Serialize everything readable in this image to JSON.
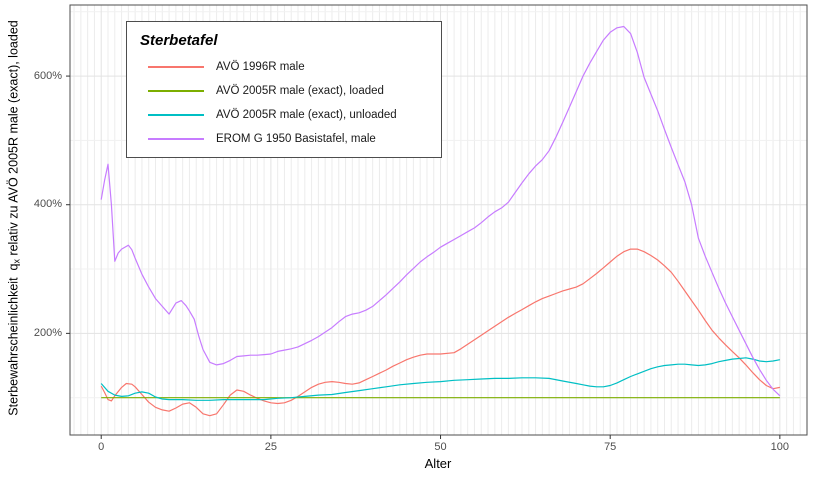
{
  "legend": {
    "title": "Sterbetafel"
  },
  "axes": {
    "x": {
      "title": "Alter",
      "ticks": [
        {
          "value": 0,
          "label": "0"
        },
        {
          "value": 25,
          "label": "25"
        },
        {
          "value": 50,
          "label": "50"
        },
        {
          "value": 75,
          "label": "75"
        },
        {
          "value": 100,
          "label": "100"
        }
      ]
    },
    "y": {
      "title_pre": "Sterbewahrscheinlichkeit  q",
      "title_sub": "x",
      "title_post": " relativ zu AVÖ 2005R male (exact), loaded",
      "ticks": [
        {
          "value": 600,
          "label": "600%"
        },
        {
          "value": 400,
          "label": "400%"
        },
        {
          "value": 200,
          "label": "200%"
        }
      ]
    }
  },
  "chart_data": {
    "type": "line",
    "title": "Sterbetafel",
    "xlabel": "Alter",
    "ylabel": "Sterbewahrscheinlichkeit qx relativ zu AVÖ 2005R male (exact), loaded",
    "x_domain": [
      -4.6,
      104
    ],
    "y_domain": [
      42,
      710.5
    ],
    "x_major": [
      0,
      25,
      50,
      75,
      100
    ],
    "x_minor_step": 1,
    "y_major": [
      200,
      400,
      600
    ],
    "y_minor": [
      100,
      300,
      500,
      700
    ],
    "grid": true,
    "legend_position": "top-left-inside",
    "unit": "percent",
    "colors": {
      "grid_major": "#e3e3e3",
      "grid_minor_v": "#ececec",
      "grid_minor_h": "#f1f1f1",
      "panel_border": "#4d4d4d",
      "tick_mark": "#333333"
    },
    "series": [
      {
        "name": "AVÖ 1996R male",
        "color": "#F8766D",
        "points": [
          [
            0,
            118
          ],
          [
            0.5,
            108
          ],
          [
            1,
            97
          ],
          [
            1.5,
            95
          ],
          [
            2,
            103
          ],
          [
            3,
            116
          ],
          [
            3.7,
            122
          ],
          [
            4.5,
            121
          ],
          [
            5,
            117
          ],
          [
            6,
            105
          ],
          [
            7,
            93
          ],
          [
            8,
            85
          ],
          [
            9,
            81
          ],
          [
            10,
            79
          ],
          [
            11,
            84
          ],
          [
            12,
            90
          ],
          [
            13,
            92
          ],
          [
            14,
            85
          ],
          [
            15,
            75
          ],
          [
            16,
            72
          ],
          [
            17,
            75
          ],
          [
            18,
            89
          ],
          [
            19,
            104
          ],
          [
            20,
            112
          ],
          [
            21,
            110
          ],
          [
            22,
            104
          ],
          [
            23,
            99
          ],
          [
            24,
            95
          ],
          [
            25,
            92
          ],
          [
            26,
            91
          ],
          [
            27,
            92
          ],
          [
            28,
            96
          ],
          [
            29,
            102
          ],
          [
            30,
            109
          ],
          [
            31,
            116
          ],
          [
            32,
            121
          ],
          [
            33,
            124
          ],
          [
            34,
            125
          ],
          [
            35,
            124
          ],
          [
            36,
            122
          ],
          [
            37,
            121
          ],
          [
            38,
            123
          ],
          [
            39,
            128
          ],
          [
            40,
            133
          ],
          [
            41,
            138
          ],
          [
            42,
            143
          ],
          [
            43,
            149
          ],
          [
            44,
            154
          ],
          [
            45,
            159
          ],
          [
            46,
            163
          ],
          [
            47,
            166
          ],
          [
            48,
            168
          ],
          [
            50,
            168
          ],
          [
            52,
            170
          ],
          [
            53,
            176
          ],
          [
            54,
            183
          ],
          [
            55,
            190
          ],
          [
            56,
            197
          ],
          [
            57,
            204
          ],
          [
            58,
            211
          ],
          [
            59,
            218
          ],
          [
            60,
            225
          ],
          [
            61,
            231
          ],
          [
            62,
            237
          ],
          [
            63,
            243
          ],
          [
            64,
            249
          ],
          [
            65,
            254
          ],
          [
            66,
            258
          ],
          [
            67,
            262
          ],
          [
            68,
            266
          ],
          [
            69,
            269
          ],
          [
            70,
            272
          ],
          [
            71,
            277
          ],
          [
            72,
            285
          ],
          [
            73,
            293
          ],
          [
            74,
            302
          ],
          [
            75,
            311
          ],
          [
            76,
            320
          ],
          [
            77,
            327
          ],
          [
            78,
            331
          ],
          [
            79,
            331
          ],
          [
            80,
            327
          ],
          [
            81,
            321
          ],
          [
            82,
            314
          ],
          [
            83,
            305
          ],
          [
            84,
            295
          ],
          [
            85,
            281
          ],
          [
            86,
            266
          ],
          [
            87,
            251
          ],
          [
            88,
            236
          ],
          [
            89,
            220
          ],
          [
            90,
            205
          ],
          [
            91,
            193
          ],
          [
            92,
            182
          ],
          [
            93,
            172
          ],
          [
            94,
            162
          ],
          [
            95,
            151
          ],
          [
            96,
            139
          ],
          [
            97,
            128
          ],
          [
            98,
            119
          ],
          [
            99,
            114
          ],
          [
            100,
            116
          ]
        ]
      },
      {
        "name": "AVÖ 2005R male (exact), loaded",
        "color": "#7CAE00",
        "points": [
          [
            0,
            100
          ],
          [
            100,
            100
          ]
        ]
      },
      {
        "name": "AVÖ 2005R male (exact), unloaded",
        "color": "#00BFC4",
        "points": [
          [
            0,
            122
          ],
          [
            1,
            110
          ],
          [
            2,
            104
          ],
          [
            3,
            102
          ],
          [
            4,
            103
          ],
          [
            5,
            107
          ],
          [
            6,
            109
          ],
          [
            7,
            107
          ],
          [
            8,
            101
          ],
          [
            9,
            98
          ],
          [
            10,
            97
          ],
          [
            12,
            97
          ],
          [
            14,
            96
          ],
          [
            16,
            96
          ],
          [
            18,
            97
          ],
          [
            20,
            97
          ],
          [
            22,
            97
          ],
          [
            24,
            97
          ],
          [
            26,
            99
          ],
          [
            28,
            100
          ],
          [
            30,
            102
          ],
          [
            32,
            104
          ],
          [
            34,
            105
          ],
          [
            36,
            108
          ],
          [
            38,
            111
          ],
          [
            40,
            114
          ],
          [
            42,
            117
          ],
          [
            44,
            120
          ],
          [
            46,
            122
          ],
          [
            48,
            124
          ],
          [
            50,
            125
          ],
          [
            52,
            127
          ],
          [
            54,
            128
          ],
          [
            56,
            129
          ],
          [
            58,
            130
          ],
          [
            60,
            130
          ],
          [
            62,
            131
          ],
          [
            64,
            131
          ],
          [
            66,
            130
          ],
          [
            68,
            126
          ],
          [
            70,
            122
          ],
          [
            71,
            120
          ],
          [
            72,
            118
          ],
          [
            73,
            117
          ],
          [
            74,
            117
          ],
          [
            75,
            119
          ],
          [
            76,
            123
          ],
          [
            77,
            128
          ],
          [
            78,
            133
          ],
          [
            79,
            137
          ],
          [
            80,
            141
          ],
          [
            81,
            145
          ],
          [
            82,
            148
          ],
          [
            83,
            150
          ],
          [
            84,
            151
          ],
          [
            85,
            152
          ],
          [
            86,
            152
          ],
          [
            87,
            151
          ],
          [
            88,
            150
          ],
          [
            89,
            151
          ],
          [
            90,
            153
          ],
          [
            91,
            156
          ],
          [
            92,
            158
          ],
          [
            93,
            160
          ],
          [
            94,
            161
          ],
          [
            95,
            162
          ],
          [
            96,
            160
          ],
          [
            97,
            157
          ],
          [
            98,
            156
          ],
          [
            99,
            157
          ],
          [
            100,
            159
          ]
        ]
      },
      {
        "name": "EROM G 1950 Basistafel, male",
        "color": "#C77CFF",
        "points": [
          [
            0,
            408
          ],
          [
            0.5,
            438
          ],
          [
            1,
            463
          ],
          [
            1.5,
            400
          ],
          [
            2,
            312
          ],
          [
            2.5,
            325
          ],
          [
            3,
            331
          ],
          [
            4,
            337
          ],
          [
            4.5,
            330
          ],
          [
            5,
            317
          ],
          [
            6,
            292
          ],
          [
            7,
            272
          ],
          [
            8,
            254
          ],
          [
            9,
            242
          ],
          [
            10,
            230
          ],
          [
            11,
            247
          ],
          [
            11.8,
            251
          ],
          [
            12.5,
            243
          ],
          [
            13,
            235
          ],
          [
            13.7,
            222
          ],
          [
            14.4,
            195
          ],
          [
            15,
            175
          ],
          [
            16,
            155
          ],
          [
            17,
            151
          ],
          [
            18,
            153
          ],
          [
            19,
            158
          ],
          [
            20,
            164
          ],
          [
            21,
            165
          ],
          [
            22,
            166
          ],
          [
            23,
            166
          ],
          [
            24,
            167
          ],
          [
            25,
            168
          ],
          [
            26,
            172
          ],
          [
            27,
            174
          ],
          [
            28,
            176
          ],
          [
            29,
            179
          ],
          [
            30,
            184
          ],
          [
            31,
            189
          ],
          [
            32,
            195
          ],
          [
            33,
            202
          ],
          [
            34,
            209
          ],
          [
            35,
            218
          ],
          [
            36,
            226
          ],
          [
            37,
            230
          ],
          [
            38,
            232
          ],
          [
            39,
            236
          ],
          [
            40,
            242
          ],
          [
            41,
            251
          ],
          [
            42,
            260
          ],
          [
            43,
            270
          ],
          [
            44,
            280
          ],
          [
            45,
            291
          ],
          [
            46,
            301
          ],
          [
            47,
            311
          ],
          [
            48,
            319
          ],
          [
            49,
            326
          ],
          [
            50,
            334
          ],
          [
            51,
            340
          ],
          [
            52,
            346
          ],
          [
            53,
            352
          ],
          [
            54,
            358
          ],
          [
            55,
            364
          ],
          [
            56,
            372
          ],
          [
            57,
            381
          ],
          [
            58,
            389
          ],
          [
            59,
            395
          ],
          [
            60,
            404
          ],
          [
            61,
            419
          ],
          [
            62,
            434
          ],
          [
            63,
            448
          ],
          [
            64,
            460
          ],
          [
            65,
            470
          ],
          [
            66,
            484
          ],
          [
            67,
            505
          ],
          [
            68,
            528
          ],
          [
            69,
            552
          ],
          [
            70,
            576
          ],
          [
            71,
            600
          ],
          [
            72,
            620
          ],
          [
            73,
            638
          ],
          [
            74,
            656
          ],
          [
            75,
            668
          ],
          [
            76,
            675
          ],
          [
            77,
            677
          ],
          [
            78,
            666
          ],
          [
            79,
            637
          ],
          [
            80,
            598
          ],
          [
            81,
            572
          ],
          [
            82,
            546
          ],
          [
            83,
            517
          ],
          [
            84,
            489
          ],
          [
            85,
            462
          ],
          [
            86,
            436
          ],
          [
            87,
            400
          ],
          [
            88,
            348
          ],
          [
            89,
            320
          ],
          [
            90,
            295
          ],
          [
            91,
            270
          ],
          [
            92,
            247
          ],
          [
            93,
            226
          ],
          [
            94,
            205
          ],
          [
            95,
            184
          ],
          [
            96,
            163
          ],
          [
            97,
            144
          ],
          [
            98,
            127
          ],
          [
            99,
            113
          ],
          [
            100,
            103
          ]
        ]
      }
    ]
  }
}
